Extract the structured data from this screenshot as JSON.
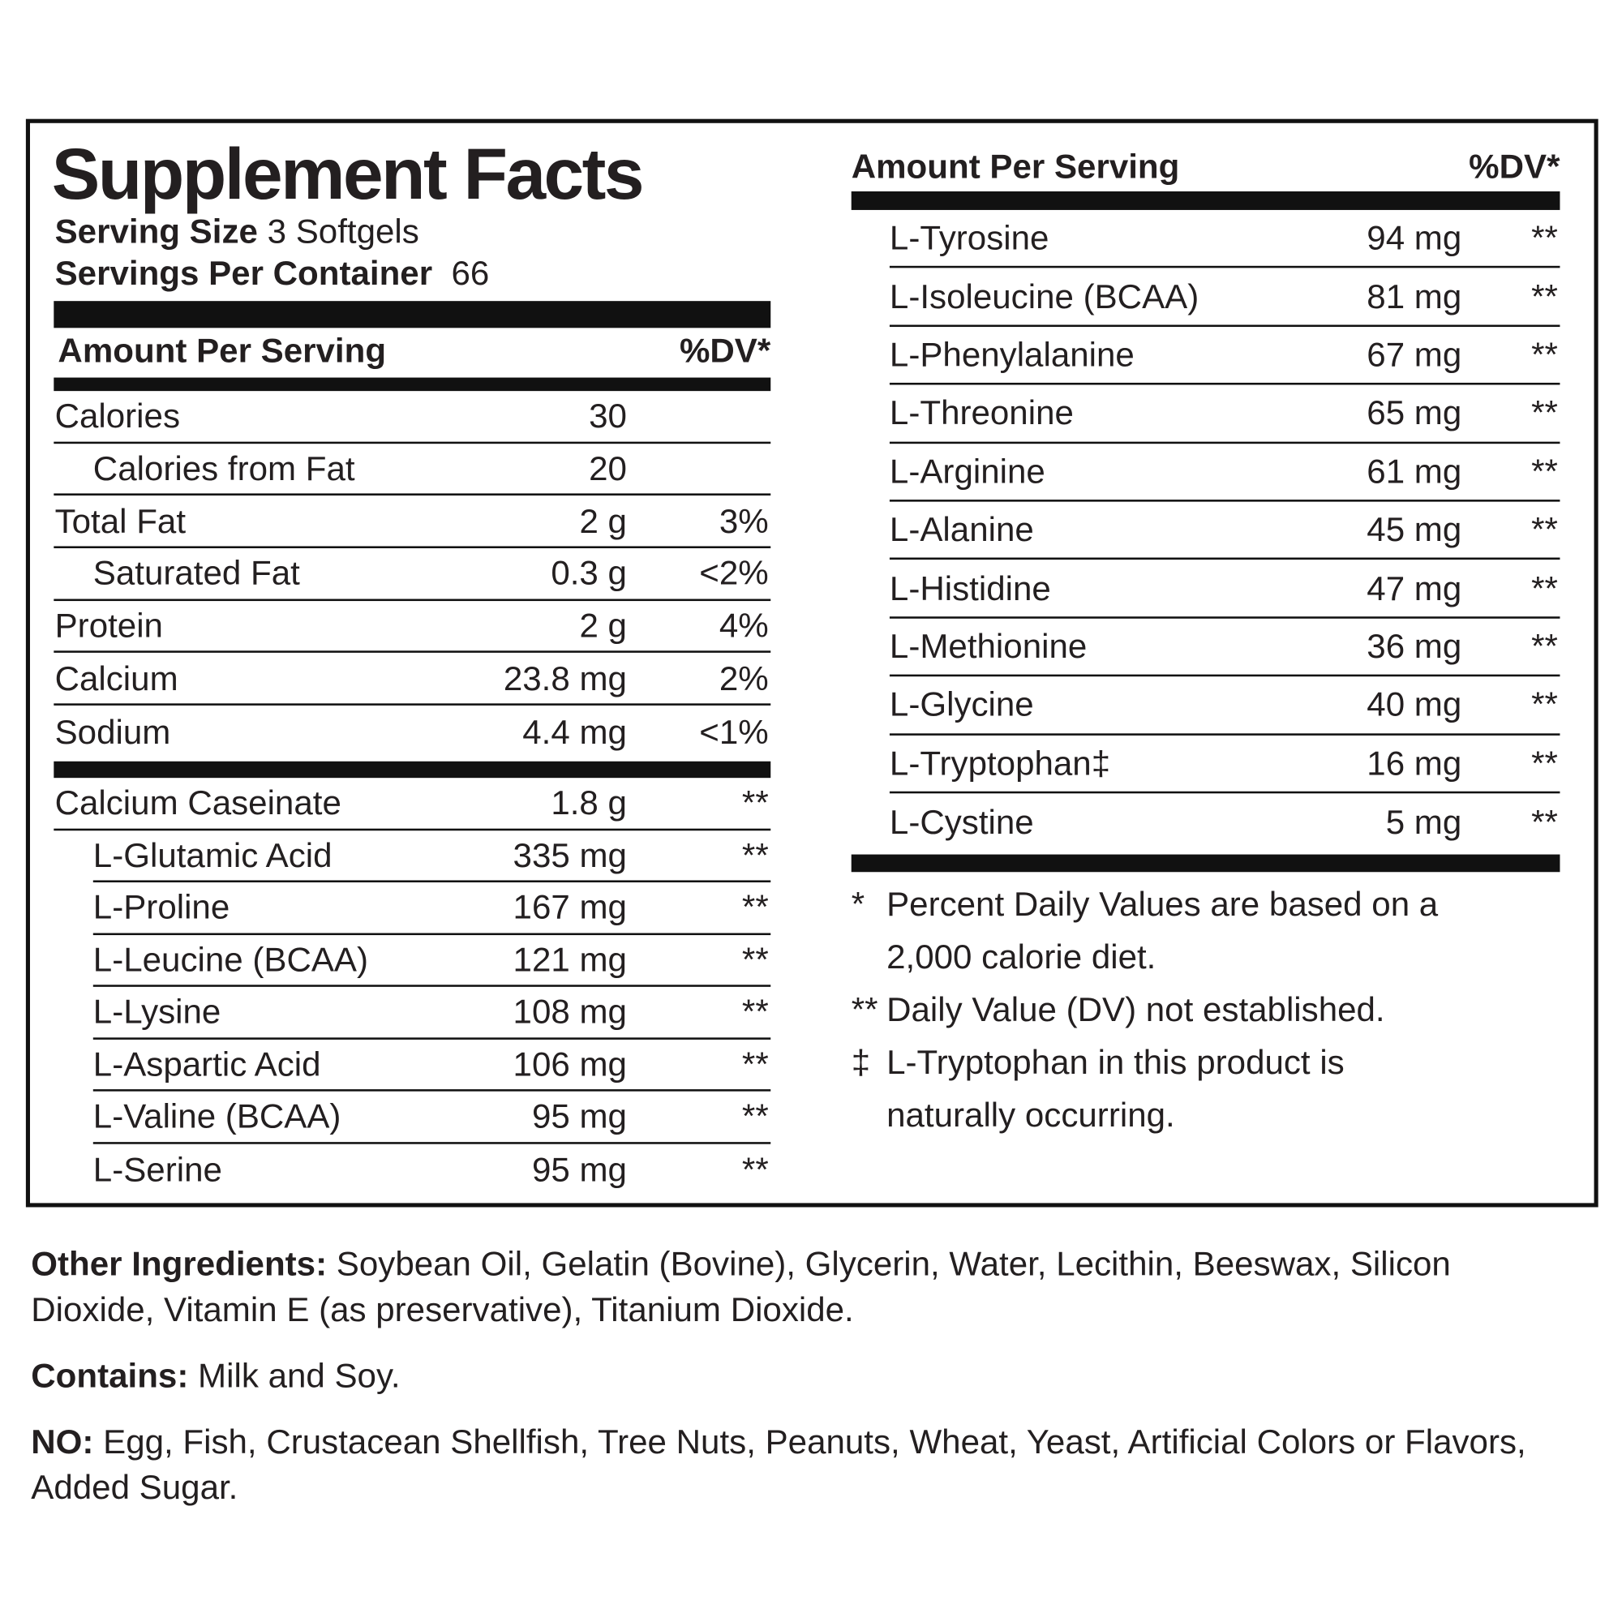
{
  "title": "Supplement Facts",
  "serving_size": {
    "label": "Serving Size",
    "value": "3 Softgels"
  },
  "servings_per_container": {
    "label": "Servings Per Container",
    "value": "66"
  },
  "left_header": {
    "amount": "Amount Per Serving",
    "dv": "%DV*"
  },
  "nutrients": [
    {
      "name": "Calories",
      "amount": "30"
    },
    {
      "name": "Calories from Fat",
      "amount": "20"
    },
    {
      "name": "Total Fat",
      "amount": "2 g",
      "dv": "3%"
    },
    {
      "name": "Saturated  Fat",
      "amount": "0.3 g",
      "dv": "<2%"
    },
    {
      "name": "Protein",
      "amount": "2 g",
      "dv": "4%"
    },
    {
      "name": "Calcium",
      "amount": "23.8 mg",
      "dv": "2%"
    },
    {
      "name": "Sodium",
      "amount": "4.4 mg",
      "dv": "<1%"
    }
  ],
  "caseinate": [
    {
      "name": "Calcium Caseinate",
      "amount": "1.8 g",
      "dv": "**"
    },
    {
      "name": "L-Glutamic Acid",
      "amount": "335 mg",
      "dv": "**"
    },
    {
      "name": "L-Proline",
      "amount": "167 mg",
      "dv": "**"
    },
    {
      "name": "L-Leucine (BCAA)",
      "amount": "121 mg",
      "dv": "**"
    },
    {
      "name": "L-Lysine",
      "amount": "108 mg",
      "dv": "**"
    },
    {
      "name": "L-Aspartic Acid",
      "amount": "106 mg",
      "dv": "**"
    },
    {
      "name": "L-Valine (BCAA)",
      "amount": "95 mg",
      "dv": "**"
    },
    {
      "name": "L-Serine",
      "amount": "95 mg",
      "dv": "**"
    }
  ],
  "right_header": {
    "amount": "Amount Per Serving",
    "dv": "%DV*"
  },
  "amino_acids": [
    {
      "name": "L-Tyrosine",
      "amount": "94 mg",
      "dv": "**"
    },
    {
      "name": "L-Isoleucine (BCAA)",
      "amount": "81 mg",
      "dv": "**"
    },
    {
      "name": "L-Phenylalanine",
      "amount": "67 mg",
      "dv": "**"
    },
    {
      "name": "L-Threonine",
      "amount": "65 mg",
      "dv": "**"
    },
    {
      "name": "L-Arginine",
      "amount": "61 mg",
      "dv": "**"
    },
    {
      "name": "L-Alanine",
      "amount": "45 mg",
      "dv": "**"
    },
    {
      "name": "L-Histidine",
      "amount": "47 mg",
      "dv": "**"
    },
    {
      "name": "L-Methionine",
      "amount": "36 mg",
      "dv": "**"
    },
    {
      "name": "L-Glycine",
      "amount": "40 mg",
      "dv": "**"
    },
    {
      "name": "L-Tryptophan‡",
      "amount": "16 mg",
      "dv": "**"
    },
    {
      "name": "L-Cystine",
      "amount": "5 mg",
      "dv": "**"
    }
  ],
  "footnotes": [
    {
      "marker": "*",
      "text": "Percent Daily Values are based on a 2,000 calorie diet."
    },
    {
      "marker": "**",
      "text": "Daily Value (DV) not established."
    },
    {
      "marker": "‡",
      "text": "L-Tryptophan in this product is naturally occurring."
    }
  ],
  "other_ingredients": {
    "label": "Other Ingredients:",
    "text": "Soybean Oil, Gelatin (Bovine), Glycerin, Water, Lecithin, Beeswax, Silicon Dioxide, Vitamin E (as preservative), Titanium Dioxide."
  },
  "contains": {
    "label": "Contains:",
    "text": "Milk and Soy."
  },
  "no": {
    "label": "NO:",
    "text": "Egg, Fish, Crustacean Shellfish, Tree Nuts, Peanuts, Wheat, Yeast, Artificial Colors or Flavors, Added Sugar."
  }
}
